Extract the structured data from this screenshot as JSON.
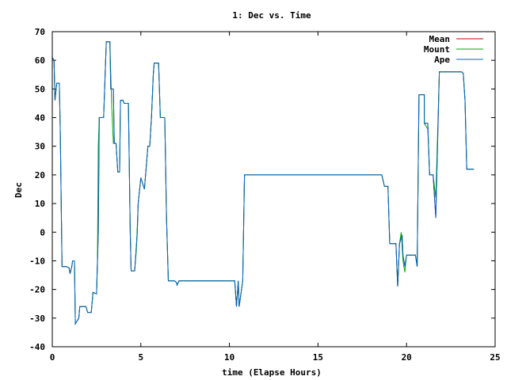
{
  "chart_data": {
    "type": "line",
    "title": "1: Dec vs. Time",
    "xlabel": "time (Elapse Hours)",
    "ylabel": "Dec",
    "xlim": [
      0,
      25
    ],
    "ylim": [
      -40,
      70
    ],
    "xticks": [
      0,
      5,
      10,
      15,
      20,
      25
    ],
    "yticks": [
      -40,
      -30,
      -20,
      -10,
      0,
      10,
      20,
      30,
      40,
      50,
      60,
      70
    ],
    "grid": false,
    "legend_position": "top-right",
    "series": [
      {
        "name": "Mean",
        "color": "#cc0000",
        "points": [
          [
            0,
            61
          ],
          [
            0.1,
            60
          ],
          [
            0.15,
            46
          ],
          [
            0.25,
            52
          ],
          [
            0.4,
            52
          ],
          [
            0.45,
            35
          ],
          [
            0.55,
            -12
          ],
          [
            0.8,
            -12
          ],
          [
            0.95,
            -12.5
          ],
          [
            1,
            -14.5
          ],
          [
            1.1,
            -12
          ],
          [
            1.15,
            -10
          ],
          [
            1.25,
            -10
          ],
          [
            1.3,
            -32
          ],
          [
            1.4,
            -31
          ],
          [
            1.5,
            -30
          ],
          [
            1.55,
            -26
          ],
          [
            1.9,
            -26
          ],
          [
            2,
            -28
          ],
          [
            2.2,
            -28
          ],
          [
            2.3,
            -21
          ],
          [
            2.5,
            -21.5
          ],
          [
            2.6,
            0
          ],
          [
            2.65,
            40
          ],
          [
            2.9,
            40
          ],
          [
            3,
            58
          ],
          [
            3.05,
            66.5
          ],
          [
            3.25,
            66.5
          ],
          [
            3.3,
            50
          ],
          [
            3.45,
            50
          ],
          [
            3.5,
            31
          ],
          [
            3.6,
            31
          ],
          [
            3.7,
            21
          ],
          [
            3.8,
            21
          ],
          [
            3.85,
            46
          ],
          [
            4,
            46
          ],
          [
            4.05,
            45
          ],
          [
            4.3,
            45
          ],
          [
            4.4,
            0
          ],
          [
            4.45,
            -13.5
          ],
          [
            4.65,
            -13.5
          ],
          [
            4.8,
            0
          ],
          [
            4.85,
            10
          ],
          [
            5,
            19
          ],
          [
            5.2,
            15
          ],
          [
            5.4,
            30
          ],
          [
            5.5,
            30
          ],
          [
            5.6,
            40
          ],
          [
            5.7,
            55
          ],
          [
            5.75,
            59
          ],
          [
            6,
            59
          ],
          [
            6.1,
            40
          ],
          [
            6.3,
            40
          ],
          [
            6.35,
            40
          ],
          [
            6.45,
            5
          ],
          [
            6.55,
            -17
          ],
          [
            6.9,
            -17
          ],
          [
            7,
            -17.5
          ],
          [
            7.05,
            -18.5
          ],
          [
            7.15,
            -17
          ],
          [
            10.3,
            -17
          ],
          [
            10.4,
            -26
          ],
          [
            10.5,
            -17
          ],
          [
            10.55,
            -26
          ],
          [
            10.75,
            -17
          ],
          [
            10.85,
            20
          ],
          [
            18.6,
            20
          ],
          [
            18.75,
            16
          ],
          [
            18.95,
            16
          ],
          [
            19.05,
            -4
          ],
          [
            19.4,
            -4
          ],
          [
            19.5,
            -19
          ],
          [
            19.6,
            -4
          ],
          [
            19.75,
            -1
          ],
          [
            19.8,
            -8
          ],
          [
            19.9,
            -12
          ],
          [
            20,
            -8
          ],
          [
            20.5,
            -8
          ],
          [
            20.6,
            -12
          ],
          [
            20.7,
            48
          ],
          [
            21,
            48
          ],
          [
            21,
            38
          ],
          [
            21.2,
            38
          ],
          [
            21.3,
            20
          ],
          [
            21.5,
            20
          ],
          [
            21.65,
            5
          ],
          [
            21.85,
            56
          ],
          [
            23.1,
            56
          ],
          [
            23.2,
            55.5
          ],
          [
            23.3,
            46
          ],
          [
            23.4,
            22
          ],
          [
            23.8,
            22
          ]
        ]
      },
      {
        "name": "Mount",
        "color": "#00aa00",
        "points": [
          [
            0,
            61
          ],
          [
            0.1,
            60
          ],
          [
            0.15,
            46
          ],
          [
            0.25,
            52
          ],
          [
            0.4,
            52
          ],
          [
            0.45,
            35
          ],
          [
            0.55,
            -12
          ],
          [
            0.8,
            -12
          ],
          [
            0.95,
            -12.5
          ],
          [
            1,
            -14.5
          ],
          [
            1.1,
            -12
          ],
          [
            1.15,
            -10
          ],
          [
            1.25,
            -10
          ],
          [
            1.3,
            -32
          ],
          [
            1.4,
            -31
          ],
          [
            1.5,
            -30
          ],
          [
            1.55,
            -26
          ],
          [
            1.9,
            -26
          ],
          [
            2,
            -28
          ],
          [
            2.2,
            -28
          ],
          [
            2.3,
            -21
          ],
          [
            2.5,
            -21.5
          ],
          [
            2.55,
            -10
          ],
          [
            2.6,
            30
          ],
          [
            2.65,
            40
          ],
          [
            2.9,
            40
          ],
          [
            3,
            58
          ],
          [
            3.05,
            66.5
          ],
          [
            3.25,
            66.5
          ],
          [
            3.3,
            56
          ],
          [
            3.35,
            45
          ],
          [
            3.45,
            31
          ],
          [
            3.6,
            31
          ],
          [
            3.7,
            21
          ],
          [
            3.8,
            21
          ],
          [
            3.85,
            46
          ],
          [
            4,
            46
          ],
          [
            4.05,
            45
          ],
          [
            4.3,
            45
          ],
          [
            4.4,
            0
          ],
          [
            4.45,
            -13.5
          ],
          [
            4.65,
            -13.5
          ],
          [
            4.75,
            -6
          ],
          [
            4.85,
            10
          ],
          [
            5,
            19
          ],
          [
            5.2,
            15
          ],
          [
            5.4,
            30
          ],
          [
            5.5,
            30
          ],
          [
            5.6,
            40
          ],
          [
            5.7,
            55
          ],
          [
            5.75,
            59
          ],
          [
            6,
            59
          ],
          [
            6.1,
            40
          ],
          [
            6.3,
            40
          ],
          [
            6.35,
            40
          ],
          [
            6.45,
            5
          ],
          [
            6.55,
            -17
          ],
          [
            6.9,
            -17
          ],
          [
            7,
            -17.5
          ],
          [
            7.05,
            -18.5
          ],
          [
            7.15,
            -17
          ],
          [
            10.3,
            -17
          ],
          [
            10.4,
            -26
          ],
          [
            10.5,
            -17
          ],
          [
            10.55,
            -26
          ],
          [
            10.75,
            -17
          ],
          [
            10.85,
            20
          ],
          [
            18.6,
            20
          ],
          [
            18.75,
            16
          ],
          [
            18.95,
            16
          ],
          [
            19.05,
            -4
          ],
          [
            19.4,
            -4
          ],
          [
            19.5,
            -19
          ],
          [
            19.6,
            -4
          ],
          [
            19.7,
            0
          ],
          [
            19.8,
            -10
          ],
          [
            19.9,
            -14
          ],
          [
            20,
            -8
          ],
          [
            20.5,
            -8
          ],
          [
            20.6,
            -12
          ],
          [
            20.7,
            48
          ],
          [
            21,
            48
          ],
          [
            21,
            38
          ],
          [
            21.2,
            36
          ],
          [
            21.3,
            20
          ],
          [
            21.5,
            20
          ],
          [
            21.65,
            12
          ],
          [
            21.85,
            56
          ],
          [
            23.1,
            56
          ],
          [
            23.2,
            55.5
          ],
          [
            23.3,
            46
          ],
          [
            23.4,
            22
          ],
          [
            23.8,
            22
          ]
        ]
      },
      {
        "name": "Ape",
        "color": "#0066cc",
        "points": [
          [
            0,
            61
          ],
          [
            0.1,
            60
          ],
          [
            0.15,
            46
          ],
          [
            0.25,
            52
          ],
          [
            0.4,
            52
          ],
          [
            0.45,
            35
          ],
          [
            0.55,
            -12
          ],
          [
            0.8,
            -12
          ],
          [
            0.95,
            -12.5
          ],
          [
            1,
            -14.5
          ],
          [
            1.1,
            -12
          ],
          [
            1.15,
            -10
          ],
          [
            1.25,
            -10
          ],
          [
            1.3,
            -32
          ],
          [
            1.4,
            -31
          ],
          [
            1.5,
            -30
          ],
          [
            1.55,
            -26
          ],
          [
            1.9,
            -26
          ],
          [
            2,
            -28
          ],
          [
            2.2,
            -28
          ],
          [
            2.3,
            -21
          ],
          [
            2.5,
            -21.5
          ],
          [
            2.6,
            0
          ],
          [
            2.65,
            40
          ],
          [
            2.9,
            40
          ],
          [
            3,
            58
          ],
          [
            3.05,
            66.5
          ],
          [
            3.25,
            66.5
          ],
          [
            3.3,
            50
          ],
          [
            3.45,
            50
          ],
          [
            3.5,
            31
          ],
          [
            3.6,
            31
          ],
          [
            3.7,
            21
          ],
          [
            3.8,
            21
          ],
          [
            3.85,
            46
          ],
          [
            4,
            46
          ],
          [
            4.05,
            45
          ],
          [
            4.3,
            45
          ],
          [
            4.4,
            0
          ],
          [
            4.45,
            -13.5
          ],
          [
            4.65,
            -13.5
          ],
          [
            4.8,
            0
          ],
          [
            4.85,
            10
          ],
          [
            5,
            19
          ],
          [
            5.2,
            15
          ],
          [
            5.4,
            30
          ],
          [
            5.5,
            30
          ],
          [
            5.6,
            40
          ],
          [
            5.7,
            55
          ],
          [
            5.75,
            59
          ],
          [
            6,
            59
          ],
          [
            6.1,
            40
          ],
          [
            6.3,
            40
          ],
          [
            6.35,
            40
          ],
          [
            6.45,
            5
          ],
          [
            6.55,
            -17
          ],
          [
            6.9,
            -17
          ],
          [
            7,
            -17.5
          ],
          [
            7.05,
            -18.5
          ],
          [
            7.15,
            -17
          ],
          [
            10.3,
            -17
          ],
          [
            10.4,
            -26
          ],
          [
            10.5,
            -17
          ],
          [
            10.55,
            -26
          ],
          [
            10.75,
            -17
          ],
          [
            10.85,
            20
          ],
          [
            18.6,
            20
          ],
          [
            18.75,
            16
          ],
          [
            18.95,
            16
          ],
          [
            19.05,
            -4
          ],
          [
            19.4,
            -4
          ],
          [
            19.5,
            -19
          ],
          [
            19.6,
            -4
          ],
          [
            19.75,
            -1
          ],
          [
            19.8,
            -8
          ],
          [
            19.9,
            -12
          ],
          [
            20,
            -8
          ],
          [
            20.5,
            -8
          ],
          [
            20.6,
            -12
          ],
          [
            20.7,
            48
          ],
          [
            21,
            48
          ],
          [
            21,
            38
          ],
          [
            21.2,
            38
          ],
          [
            21.3,
            20
          ],
          [
            21.5,
            20
          ],
          [
            21.65,
            5
          ],
          [
            21.85,
            56
          ],
          [
            23.1,
            56
          ],
          [
            23.2,
            55.5
          ],
          [
            23.3,
            46
          ],
          [
            23.4,
            22
          ],
          [
            23.8,
            22
          ]
        ]
      }
    ]
  }
}
